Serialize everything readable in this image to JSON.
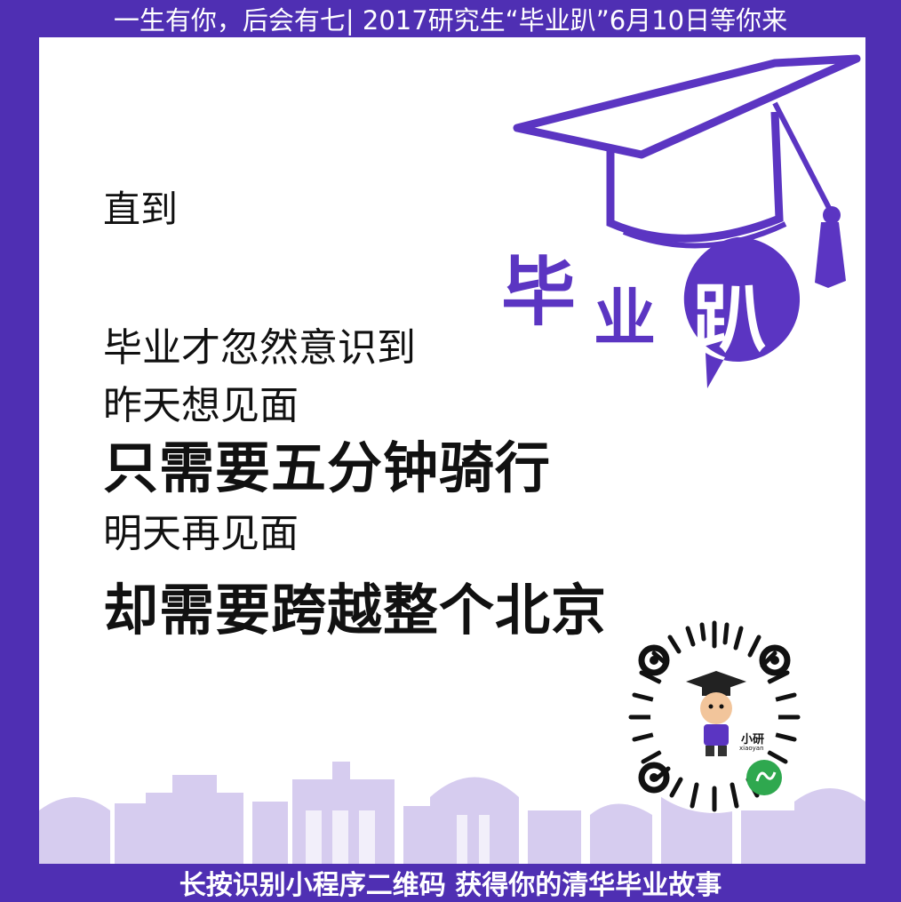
{
  "header": {
    "title": "一生有你，后会有七| 2017研究生“毕业趴”6月10日等你来"
  },
  "content": {
    "intro": "直到",
    "line1": "毕业才忽然意识到",
    "line2": "昨天想见面",
    "bold1": "只需要五分钟骑行",
    "line3": "明天再见面",
    "bold2": "却需要跨越整个北京"
  },
  "badge": {
    "chars": [
      "毕",
      "业",
      "趴"
    ]
  },
  "qr": {
    "mascot_label": "小研",
    "mascot_sublabel": "xiaoyan"
  },
  "footer": {
    "text": "长按识别小程序二维码 获得你的清华毕业故事"
  },
  "colors": {
    "accent": "#4f2fb3",
    "light_purple": "#d6ccef",
    "text": "#111111"
  }
}
